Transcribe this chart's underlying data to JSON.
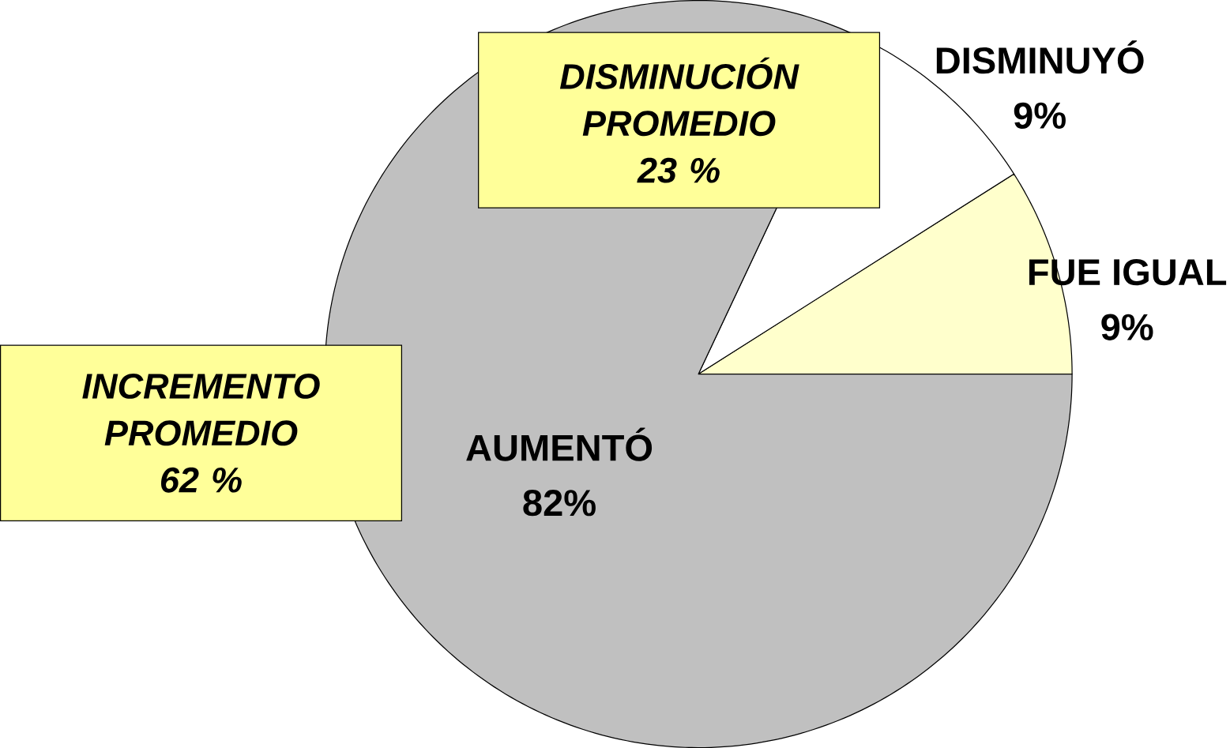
{
  "chart_data": {
    "type": "pie",
    "categories": [
      "FUE IGUAL",
      "DISMINUYÓ",
      "AUMENTÓ"
    ],
    "values": [
      9,
      9,
      82
    ],
    "value_labels": [
      "9%",
      "9%",
      "82%"
    ],
    "colors": [
      "#ffffcc",
      "#ffffff",
      "#c0c0c0"
    ],
    "annotations": [
      "DISMINUCIÓN PROMEDIO 23 %",
      "INCREMENTO PROMEDIO 62 %"
    ]
  }
}
